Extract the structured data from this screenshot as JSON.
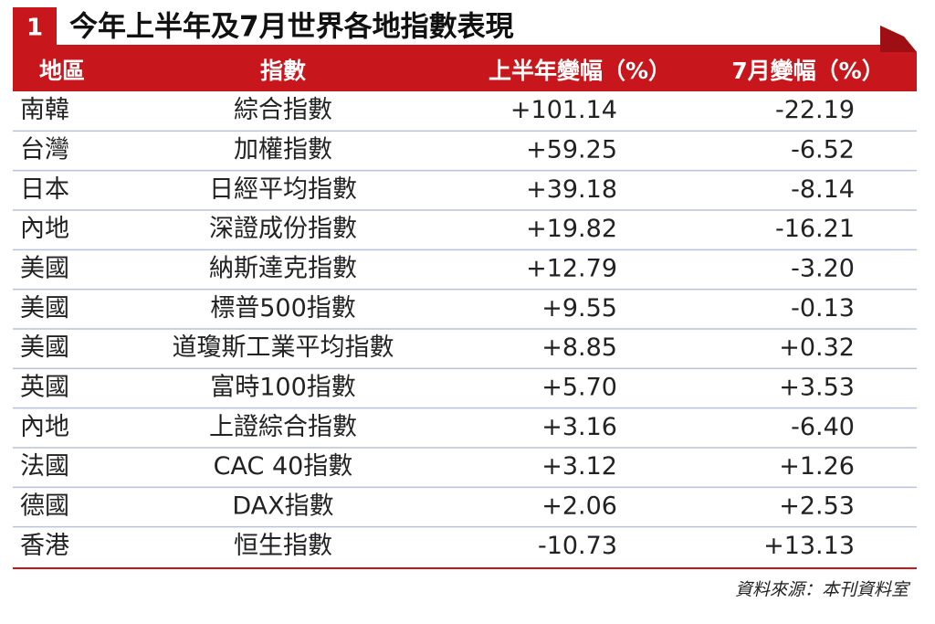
{
  "header": {
    "number": "1",
    "title": "今年上半年及7月世界各地指數表現"
  },
  "table": {
    "columns": [
      "地區",
      "指數",
      "上半年變幅（%）",
      "7月變幅（%）"
    ],
    "rows": [
      [
        "南韓",
        "綜合指數",
        "+101.14",
        "-22.19"
      ],
      [
        "台灣",
        "加權指數",
        "+59.25",
        "-6.52"
      ],
      [
        "日本",
        "日經平均指數",
        "+39.18",
        "-8.14"
      ],
      [
        "內地",
        "深證成份指數",
        "+19.82",
        "-16.21"
      ],
      [
        "美國",
        "納斯達克指數",
        "+12.79",
        "-3.20"
      ],
      [
        "美國",
        "標普500指數",
        "+9.55",
        "-0.13"
      ],
      [
        "美國",
        "道瓊斯工業平均指數",
        "+8.85",
        "+0.32"
      ],
      [
        "英國",
        "富時100指數",
        "+5.70",
        "+3.53"
      ],
      [
        "內地",
        "上證綜合指數",
        "+3.16",
        "-6.40"
      ],
      [
        "法國",
        "CAC 40指數",
        "+3.12",
        "+1.26"
      ],
      [
        "德國",
        "DAX指數",
        "+2.06",
        "+2.53"
      ],
      [
        "香港",
        "恒生指數",
        "-10.73",
        "+13.13"
      ]
    ]
  },
  "footer": {
    "source": "資料來源：本刊資料室"
  }
}
